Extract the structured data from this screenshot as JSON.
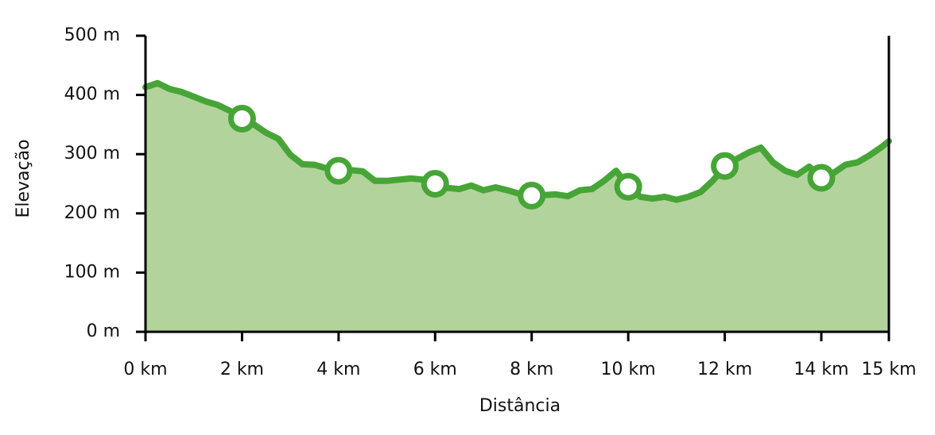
{
  "chart_data": {
    "type": "area",
    "xlabel": "Distância",
    "ylabel": "Elevação",
    "line_color": "#47a538",
    "fill_color": "#b3d39c",
    "x": [
      0,
      0.25,
      0.5,
      0.75,
      1,
      1.25,
      1.5,
      1.75,
      2,
      2.25,
      2.5,
      2.75,
      3,
      3.25,
      3.5,
      3.75,
      4,
      4.25,
      4.5,
      4.75,
      5,
      5.25,
      5.5,
      5.75,
      6,
      6.25,
      6.5,
      6.75,
      7,
      7.25,
      7.5,
      7.75,
      8,
      8.25,
      8.5,
      8.75,
      9,
      9.25,
      9.5,
      9.75,
      10,
      10.25,
      10.5,
      10.75,
      11,
      11.25,
      11.5,
      11.75,
      12,
      12.25,
      12.5,
      12.75,
      13,
      13.25,
      13.5,
      13.75,
      14,
      14.25,
      14.5,
      14.75,
      15,
      15.25,
      15.4
    ],
    "values": [
      413,
      420,
      410,
      405,
      397,
      389,
      383,
      373,
      359,
      350,
      336,
      326,
      299,
      283,
      282,
      276,
      271,
      273,
      271,
      255,
      255,
      257,
      259,
      257,
      249,
      243,
      241,
      247,
      239,
      244,
      239,
      233,
      229,
      231,
      232,
      229,
      239,
      241,
      255,
      272,
      245,
      228,
      225,
      228,
      223,
      228,
      236,
      255,
      279,
      292,
      303,
      311,
      286,
      272,
      265,
      279,
      259,
      268,
      282,
      286,
      298,
      312,
      322
    ],
    "markers": {
      "x": [
        2,
        4,
        6,
        8,
        10,
        12,
        14
      ],
      "values": [
        360,
        272,
        250,
        230,
        245,
        280,
        260
      ]
    },
    "xlim": [
      0,
      15.4
    ],
    "xticks": [
      {
        "value": 0,
        "label": "0 km"
      },
      {
        "value": 2,
        "label": "2 km"
      },
      {
        "value": 4,
        "label": "4 km"
      },
      {
        "value": 6,
        "label": "6 km"
      },
      {
        "value": 8,
        "label": "8 km"
      },
      {
        "value": 10,
        "label": "10 km"
      },
      {
        "value": 12,
        "label": "12 km"
      },
      {
        "value": 14,
        "label": "14 km"
      },
      {
        "value": 15.4,
        "label": "15 km"
      }
    ],
    "ylim": [
      0,
      500
    ],
    "yticks": [
      {
        "value": 0,
        "label": "0 m"
      },
      {
        "value": 100,
        "label": "100 m"
      },
      {
        "value": 200,
        "label": "200 m"
      },
      {
        "value": 300,
        "label": "300 m"
      },
      {
        "value": 400,
        "label": "400 m"
      },
      {
        "value": 500,
        "label": "500 m"
      }
    ]
  }
}
